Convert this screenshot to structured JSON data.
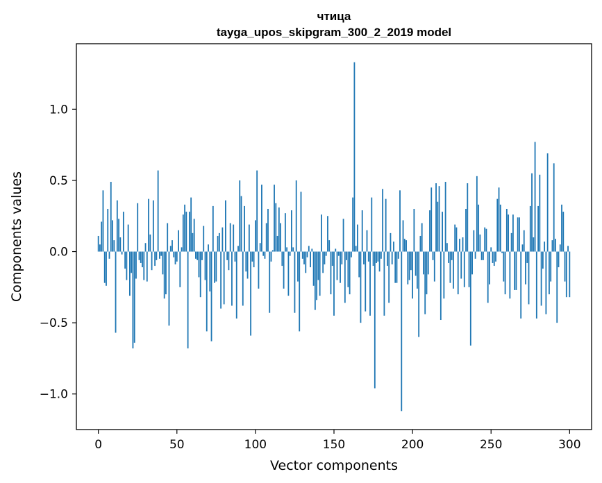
{
  "chart_data": {
    "type": "bar",
    "title": "чтица",
    "subtitle": "tayga_upos_skipgram_300_2_2019 model",
    "xlabel": "Vector components",
    "ylabel": "Components values",
    "xlim": [
      -14,
      314
    ],
    "ylim": [
      -1.25,
      1.46
    ],
    "xticks": [
      0,
      50,
      100,
      150,
      200,
      250,
      300
    ],
    "xtick_labels": [
      "0",
      "50",
      "100",
      "150",
      "200",
      "250",
      "300"
    ],
    "yticks": [
      -1.0,
      -0.5,
      0.0,
      0.5,
      1.0
    ],
    "ytick_labels": [
      "−1.0",
      "−0.5",
      "0.0",
      "0.5",
      "1.0"
    ],
    "grid": false,
    "bar_color": "#1f77b4",
    "series": [
      {
        "values": [
          0.11,
          0.05,
          0.21,
          0.43,
          -0.22,
          -0.24,
          0.3,
          -0.05,
          0.49,
          0.22,
          0.08,
          -0.57,
          0.36,
          0.23,
          0.1,
          -0.02,
          0.28,
          -0.12,
          -0.2,
          0.19,
          -0.31,
          -0.15,
          -0.68,
          -0.64,
          -0.19,
          0.34,
          -0.06,
          -0.08,
          -0.11,
          -0.2,
          0.06,
          -0.21,
          0.37,
          0.12,
          -0.13,
          0.36,
          -0.1,
          -0.06,
          0.57,
          -0.05,
          -0.03,
          -0.16,
          -0.33,
          -0.3,
          0.2,
          -0.52,
          0.04,
          0.08,
          -0.04,
          -0.09,
          -0.07,
          0.15,
          -0.25,
          0.03,
          0.26,
          0.33,
          0.28,
          -0.68,
          0.28,
          0.38,
          0.13,
          0.23,
          -0.05,
          -0.06,
          -0.18,
          -0.32,
          -0.06,
          0.18,
          -0.2,
          -0.56,
          0.05,
          -0.28,
          -0.63,
          0.32,
          -0.22,
          -0.21,
          0.11,
          0.13,
          -0.4,
          0.17,
          -0.37,
          0.36,
          -0.06,
          -0.13,
          0.2,
          -0.38,
          0.19,
          -0.07,
          -0.47,
          0.04,
          0.5,
          0.39,
          -0.38,
          0.32,
          -0.14,
          -0.19,
          0.19,
          -0.59,
          -0.07,
          -0.11,
          0.22,
          0.57,
          -0.26,
          0.06,
          0.47,
          -0.03,
          -0.05,
          0.2,
          0.3,
          -0.43,
          -0.07,
          0.01,
          0.47,
          0.34,
          0.11,
          0.31,
          0.2,
          -0.1,
          -0.26,
          0.27,
          0.03,
          -0.31,
          -0.03,
          0.29,
          0.03,
          -0.43,
          0.5,
          -0.21,
          -0.56,
          0.42,
          -0.05,
          -0.09,
          -0.15,
          -0.04,
          0.04,
          -0.11,
          0.02,
          -0.24,
          -0.41,
          -0.34,
          -0.2,
          -0.31,
          0.26,
          -0.15,
          -0.09,
          -0.03,
          0.25,
          0.08,
          -0.3,
          -0.1,
          -0.45,
          0.02,
          -0.2,
          -0.03,
          -0.22,
          -0.09,
          0.23,
          -0.36,
          -0.06,
          -0.25,
          -0.3,
          -0.04,
          0.38,
          1.33,
          0.04,
          0.19,
          -0.18,
          -0.5,
          0.29,
          -0.09,
          -0.42,
          0.15,
          -0.07,
          -0.45,
          0.38,
          -0.1,
          -0.96,
          -0.08,
          -0.07,
          -0.14,
          -0.05,
          0.44,
          -0.45,
          0.37,
          -0.1,
          -0.36,
          0.13,
          -0.09,
          0.07,
          -0.22,
          -0.22,
          -0.05,
          0.43,
          -1.12,
          0.22,
          0.09,
          0.08,
          -0.23,
          -0.2,
          -0.13,
          -0.33,
          0.3,
          -0.17,
          -0.26,
          -0.6,
          0.11,
          0.2,
          -0.16,
          -0.44,
          -0.3,
          -0.16,
          0.29,
          0.45,
          -0.06,
          -0.21,
          0.48,
          0.35,
          0.46,
          -0.48,
          0.28,
          -0.33,
          0.49,
          0.06,
          -0.08,
          -0.22,
          -0.06,
          -0.26,
          0.19,
          0.17,
          -0.3,
          0.09,
          -0.19,
          0.1,
          -0.25,
          0.3,
          0.48,
          -0.25,
          -0.66,
          -0.16,
          0.15,
          -0.05,
          0.53,
          0.33,
          0.12,
          -0.06,
          -0.06,
          0.17,
          0.16,
          -0.36,
          -0.23,
          0.03,
          -0.08,
          -0.1,
          -0.07,
          0.37,
          0.45,
          0.33,
          -0.01,
          -0.21,
          -0.3,
          0.3,
          0.26,
          -0.33,
          0.13,
          0.26,
          -0.27,
          -0.27,
          0.24,
          0.24,
          -0.47,
          0.05,
          0.15,
          -0.23,
          -0.08,
          -0.37,
          0.32,
          0.55,
          0.1,
          0.77,
          -0.47,
          0.32,
          0.54,
          -0.38,
          -0.12,
          0.07,
          -0.44,
          0.69,
          -0.3,
          -0.21,
          0.08,
          0.62,
          0.09,
          -0.5,
          -0.11,
          0.05,
          0.33,
          0.28,
          -0.21,
          -0.32,
          0.04,
          -0.32
        ]
      }
    ]
  }
}
